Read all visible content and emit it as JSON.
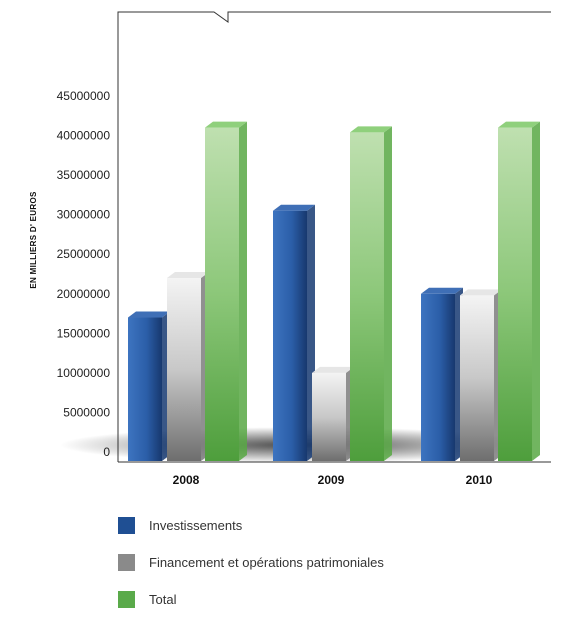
{
  "chart_data": {
    "type": "bar",
    "title": "",
    "ylabel": "EN MILLIERS D' EUROS",
    "xlabel": "",
    "categories": [
      "2008",
      "2009",
      "2010"
    ],
    "ylim": [
      0,
      45000000
    ],
    "yticks": [
      "0",
      "5000000",
      "10000000",
      "15000000",
      "20000000",
      "25000000",
      "30000000",
      "35000000",
      "40000000",
      "45000000"
    ],
    "series": [
      {
        "name": "Investissements",
        "values": [
          17000000,
          30500000,
          20000000
        ],
        "color": "#1f4f93"
      },
      {
        "name": "Financement et opérations patrimoniales",
        "values": [
          22000000,
          10000000,
          19800000
        ],
        "color": "#8a8a8a"
      },
      {
        "name": "Total",
        "values": [
          41000000,
          40400000,
          41000000
        ],
        "color": "#5aaa4a"
      }
    ],
    "legend_position": "bottom-left",
    "grid": false
  }
}
